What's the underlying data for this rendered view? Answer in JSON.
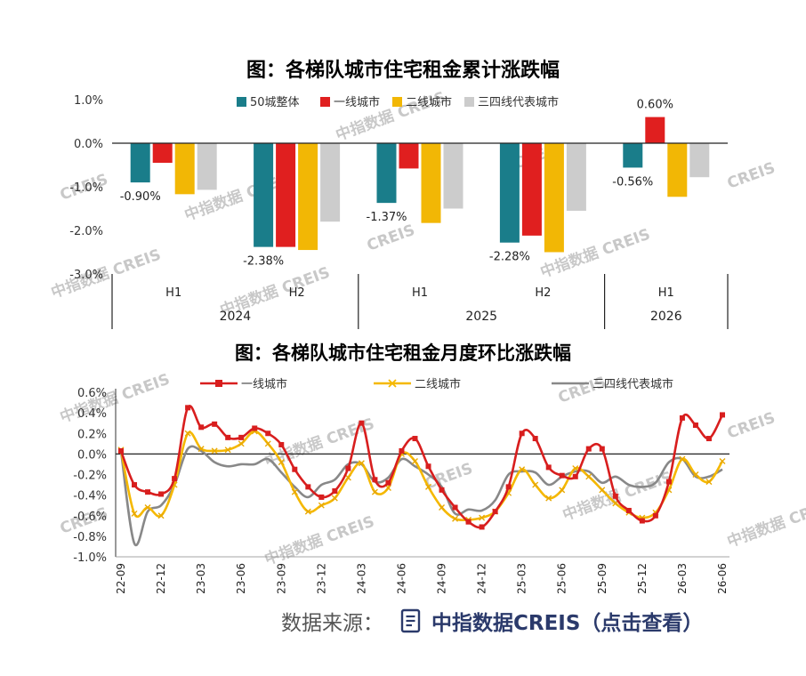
{
  "chart_data": [
    {
      "type": "bar",
      "title": "图：各梯队城市住宅租金累计涨跌幅",
      "ylim": [
        -3.0,
        1.0
      ],
      "y_ticks": [
        "1.0%",
        "0.0%",
        "-1.0%",
        "-2.0%",
        "-3.0%"
      ],
      "y_tick_values": [
        1.0,
        0.0,
        -1.0,
        -2.0,
        -3.0
      ],
      "legend_position": "top",
      "categories": [
        "H1",
        "H2",
        "H1",
        "H2",
        "H1"
      ],
      "years": [
        {
          "label": "2024",
          "span": [
            0,
            1
          ]
        },
        {
          "label": "2025",
          "span": [
            2,
            3
          ]
        },
        {
          "label": "2026",
          "span": [
            4,
            4
          ]
        }
      ],
      "series": [
        {
          "name": "50城整体",
          "color": "#1a7d8a",
          "values": [
            -0.9,
            -2.38,
            -1.37,
            -2.28,
            -0.56
          ]
        },
        {
          "name": "一线城市",
          "color": "#e01f1f",
          "values": [
            -0.45,
            -2.38,
            -0.58,
            -2.12,
            0.6
          ]
        },
        {
          "name": "二线城市",
          "color": "#f2b705",
          "values": [
            -1.17,
            -2.45,
            -1.83,
            -2.5,
            -1.23
          ]
        },
        {
          "name": "三四线代表城市",
          "color": "#cccccc",
          "values": [
            -1.07,
            -1.8,
            -1.5,
            -1.55,
            -0.78
          ]
        }
      ],
      "data_labels": [
        {
          "index": 0,
          "series": 0,
          "text": "-0.90%"
        },
        {
          "index": 1,
          "series": 0,
          "text": "-2.38%"
        },
        {
          "index": 2,
          "series": 0,
          "text": "-1.37%"
        },
        {
          "index": 3,
          "series": 0,
          "text": "-2.28%"
        },
        {
          "index": 4,
          "series": 0,
          "text": "-0.56%"
        },
        {
          "index": 4,
          "series": 1,
          "text": "0.60%"
        }
      ]
    },
    {
      "type": "line",
      "title": "图：各梯队城市住宅租金月度环比涨跌幅",
      "ylim": [
        -1.0,
        0.6
      ],
      "y_ticks": [
        "0.6%",
        "0.4%",
        "0.2%",
        "0.0%",
        "-0.2%",
        "-0.4%",
        "-0.6%",
        "-0.8%",
        "-1.0%"
      ],
      "y_tick_values": [
        0.6,
        0.4,
        0.2,
        0.0,
        -0.2,
        -0.4,
        -0.6,
        -0.8,
        -1.0
      ],
      "legend_position": "top",
      "x": [
        "22-09",
        "22-10",
        "22-11",
        "22-12",
        "23-01",
        "23-02",
        "23-03",
        "23-04",
        "23-05",
        "23-06",
        "23-07",
        "23-08",
        "23-09",
        "23-10",
        "23-11",
        "23-12",
        "24-01",
        "24-02",
        "24-03",
        "24-04",
        "24-05",
        "24-06",
        "24-07",
        "24-08",
        "24-09",
        "24-10",
        "24-11",
        "24-12",
        "25-01",
        "25-02",
        "25-03",
        "25-04",
        "25-05",
        "25-06",
        "25-07",
        "25-08",
        "25-09",
        "25-10",
        "25-11",
        "25-12",
        "26-01",
        "26-02",
        "26-03",
        "26-04",
        "26-05",
        "26-06"
      ],
      "x_ticks": [
        "22-09",
        "22-12",
        "23-03",
        "23-06",
        "23-09",
        "23-12",
        "24-03",
        "24-06",
        "24-09",
        "24-12",
        "25-03",
        "25-06",
        "25-09",
        "25-12",
        "26-03",
        "26-06"
      ],
      "series": [
        {
          "name": "一线城市",
          "color": "#d81e1e",
          "marker": "square",
          "values": [
            0.03,
            -0.3,
            -0.37,
            -0.39,
            -0.24,
            0.45,
            0.26,
            0.29,
            0.16,
            0.16,
            0.25,
            0.2,
            0.09,
            -0.15,
            -0.32,
            -0.42,
            -0.36,
            -0.14,
            0.3,
            -0.25,
            -0.28,
            0.03,
            0.15,
            -0.12,
            -0.35,
            -0.52,
            -0.66,
            -0.71,
            -0.56,
            -0.32,
            0.2,
            0.15,
            -0.13,
            -0.21,
            -0.22,
            0.05,
            0.05,
            -0.41,
            -0.55,
            -0.65,
            -0.6,
            -0.27,
            0.35,
            0.28,
            0.15,
            0.38
          ]
        },
        {
          "name": "二线城市",
          "color": "#f5b800",
          "marker": "x",
          "values": [
            0.04,
            -0.58,
            -0.52,
            -0.6,
            -0.3,
            0.2,
            0.05,
            0.03,
            0.04,
            0.1,
            0.22,
            0.1,
            -0.08,
            -0.37,
            -0.56,
            -0.5,
            -0.43,
            -0.23,
            -0.09,
            -0.37,
            -0.33,
            0.0,
            -0.07,
            -0.32,
            -0.52,
            -0.63,
            -0.64,
            -0.62,
            -0.56,
            -0.38,
            -0.15,
            -0.3,
            -0.43,
            -0.35,
            -0.14,
            -0.22,
            -0.35,
            -0.48,
            -0.57,
            -0.62,
            -0.57,
            -0.35,
            -0.05,
            -0.2,
            -0.27,
            -0.07
          ]
        },
        {
          "name": "三四线代表城市",
          "color": "#888888",
          "marker": "none",
          "values": [
            0.03,
            -0.87,
            -0.56,
            -0.5,
            -0.3,
            0.05,
            0.03,
            -0.08,
            -0.12,
            -0.1,
            -0.1,
            -0.05,
            -0.18,
            -0.32,
            -0.42,
            -0.3,
            -0.25,
            -0.1,
            -0.1,
            -0.27,
            -0.23,
            -0.05,
            -0.12,
            -0.2,
            -0.32,
            -0.58,
            -0.54,
            -0.55,
            -0.45,
            -0.2,
            -0.17,
            -0.18,
            -0.3,
            -0.22,
            -0.17,
            -0.17,
            -0.28,
            -0.22,
            -0.3,
            -0.32,
            -0.28,
            -0.08,
            -0.05,
            -0.22,
            -0.22,
            -0.15
          ]
        }
      ]
    }
  ],
  "source": {
    "label": "数据来源：",
    "link": "中指数据CREIS（点击查看）"
  },
  "watermark": [
    "中指数据",
    "CREIS"
  ]
}
